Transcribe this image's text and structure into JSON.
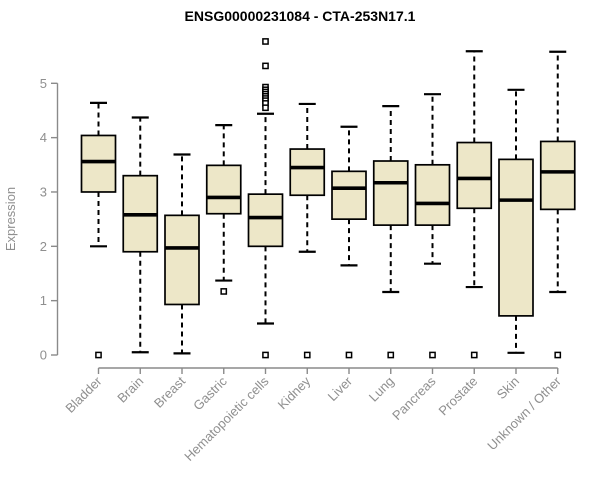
{
  "chart_data": {
    "type": "boxplot",
    "title": "ENSG00000231084 - CTA-253N17.1",
    "xlabel": "",
    "ylabel": "Expression",
    "ylim": [
      0,
      5.9
    ],
    "yticks": [
      0,
      1,
      2,
      3,
      4,
      5
    ],
    "grid": false,
    "legend": "none",
    "categories": [
      "Bladder",
      "Brain",
      "Breast",
      "Gastric",
      "Hematopoietic cells",
      "Kidney",
      "Liver",
      "Lung",
      "Pancreas",
      "Prostate",
      "Skin",
      "Unknown / Other"
    ],
    "series": [
      {
        "name": "Bladder",
        "whisker_low": 2.0,
        "q1": 3.0,
        "median": 3.56,
        "q3": 4.04,
        "whisker_high": 4.64,
        "outliers": [
          0
        ]
      },
      {
        "name": "Brain",
        "whisker_low": 0.05,
        "q1": 1.9,
        "median": 2.58,
        "q3": 3.3,
        "whisker_high": 4.37,
        "outliers": []
      },
      {
        "name": "Breast",
        "whisker_low": 0.03,
        "q1": 0.93,
        "median": 1.97,
        "q3": 2.57,
        "whisker_high": 3.69,
        "outliers": []
      },
      {
        "name": "Gastric",
        "whisker_low": 1.37,
        "q1": 2.6,
        "median": 2.9,
        "q3": 3.49,
        "whisker_high": 4.23,
        "outliers": [
          1.17
        ]
      },
      {
        "name": "Hematopoietic cells",
        "whisker_low": 0.58,
        "q1": 2.0,
        "median": 2.53,
        "q3": 2.96,
        "whisker_high": 4.44,
        "outliers": [
          5.77,
          5.32,
          4.93,
          4.88,
          4.84,
          4.8,
          4.76,
          4.72,
          4.68,
          4.63,
          4.55,
          0
        ]
      },
      {
        "name": "Kidney",
        "whisker_low": 1.9,
        "q1": 2.94,
        "median": 3.45,
        "q3": 3.79,
        "whisker_high": 4.62,
        "outliers": [
          0
        ]
      },
      {
        "name": "Liver",
        "whisker_low": 1.65,
        "q1": 2.5,
        "median": 3.07,
        "q3": 3.38,
        "whisker_high": 4.2,
        "outliers": [
          0
        ]
      },
      {
        "name": "Lung",
        "whisker_low": 1.16,
        "q1": 2.39,
        "median": 3.17,
        "q3": 3.57,
        "whisker_high": 4.58,
        "outliers": [
          0
        ]
      },
      {
        "name": "Pancreas",
        "whisker_low": 1.68,
        "q1": 2.39,
        "median": 2.79,
        "q3": 3.5,
        "whisker_high": 4.8,
        "outliers": [
          0
        ]
      },
      {
        "name": "Prostate",
        "whisker_low": 1.25,
        "q1": 2.7,
        "median": 3.25,
        "q3": 3.91,
        "whisker_high": 5.59,
        "outliers": [
          0
        ]
      },
      {
        "name": "Skin",
        "whisker_low": 0.04,
        "q1": 0.72,
        "median": 2.85,
        "q3": 3.6,
        "whisker_high": 4.88,
        "outliers": []
      },
      {
        "name": "Unknown / Other",
        "whisker_low": 1.16,
        "q1": 2.68,
        "median": 3.37,
        "q3": 3.93,
        "whisker_high": 5.58,
        "outliers": [
          0
        ]
      }
    ],
    "colors": {
      "box_fill": "#EDE7C8",
      "box_border": "#000000",
      "median": "#000000",
      "whisker": "#000000",
      "outlier_fill": "#ffffff",
      "axis": "#8a8a8a",
      "tick_text": "#8f8f8f",
      "title_text": "#000000",
      "background": "#ffffff"
    }
  }
}
